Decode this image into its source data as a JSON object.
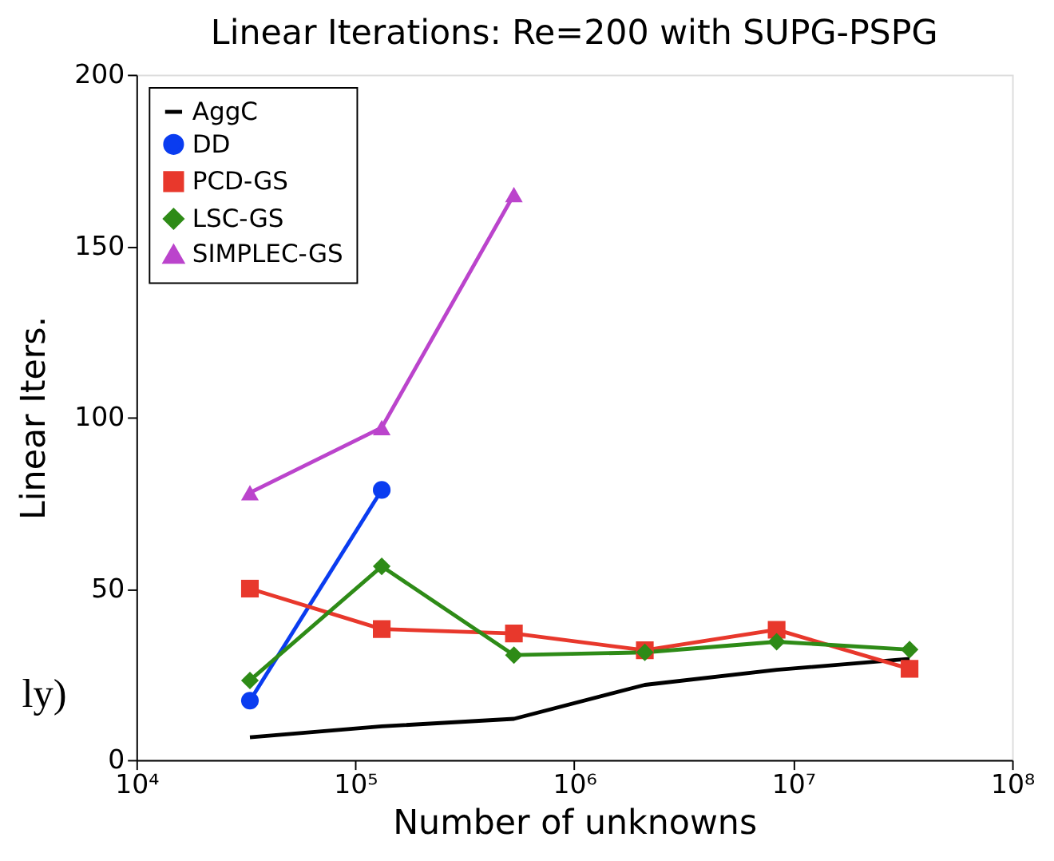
{
  "chart_data": {
    "type": "line",
    "title": "Linear Iterations: Re=200 with SUPG-PSPG",
    "xlabel": "Number of unknowns",
    "ylabel": "Linear Iters.",
    "log": "x",
    "x": [
      33000,
      132000,
      530000,
      2100000,
      8400000,
      34000000
    ],
    "xlim": [
      10000,
      100000000
    ],
    "xticks": [
      {
        "value": 10000,
        "label": "10⁴"
      },
      {
        "value": 100000,
        "label": "10⁵"
      },
      {
        "value": 1000000,
        "label": "10⁶"
      },
      {
        "value": 10000000,
        "label": "10⁷"
      },
      {
        "value": 100000000,
        "label": "10⁸"
      }
    ],
    "ylim": [
      0,
      200
    ],
    "yticks": [
      0,
      50,
      100,
      150,
      200
    ],
    "grid": false,
    "legend": "top left",
    "line_style": "solid",
    "annotations": [
      "ly)"
    ],
    "series": [
      {
        "name": "AggC",
        "color": "#000000",
        "marker": "none",
        "values": [
          6.6,
          9.8,
          12,
          21.9,
          26.3,
          29.5
        ]
      },
      {
        "name": "DD",
        "color": "#0a3cf0",
        "marker": "circle",
        "values": [
          17.3,
          78.8,
          null,
          null,
          null,
          null
        ]
      },
      {
        "name": "PCD-GS",
        "color": "#e8382c",
        "marker": "square",
        "values": [
          50,
          38.2,
          36.9,
          32,
          38,
          26.6
        ]
      },
      {
        "name": "LSC-GS",
        "color": "#2e8b17",
        "marker": "diamond",
        "values": [
          23.2,
          56.5,
          30.6,
          31.4,
          34.5,
          32.2
        ]
      },
      {
        "name": "SIMPLEC-GS",
        "color": "#bb44cc",
        "marker": "triangle",
        "values": [
          78,
          97,
          165,
          null,
          null,
          null
        ]
      }
    ]
  }
}
